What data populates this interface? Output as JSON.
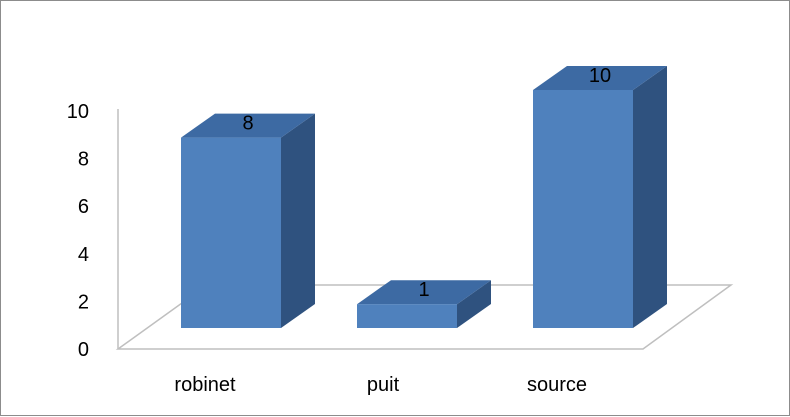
{
  "chart_data": {
    "type": "bar",
    "style": "3d-column",
    "categories": [
      "robinet",
      "puit",
      "source"
    ],
    "values": [
      8,
      1,
      10
    ],
    "data_labels": [
      "8",
      "1",
      "10"
    ],
    "yticks": [
      "0",
      "2",
      "4",
      "6",
      "8",
      "10"
    ],
    "ylim": [
      0,
      10
    ],
    "title": "",
    "xlabel": "",
    "ylabel": "",
    "grid": false,
    "legend": "none",
    "colors": {
      "front": "#4f81bd",
      "side": "#2f527f",
      "top": "#3d6aa3",
      "axis": "#bfbfbf"
    }
  }
}
